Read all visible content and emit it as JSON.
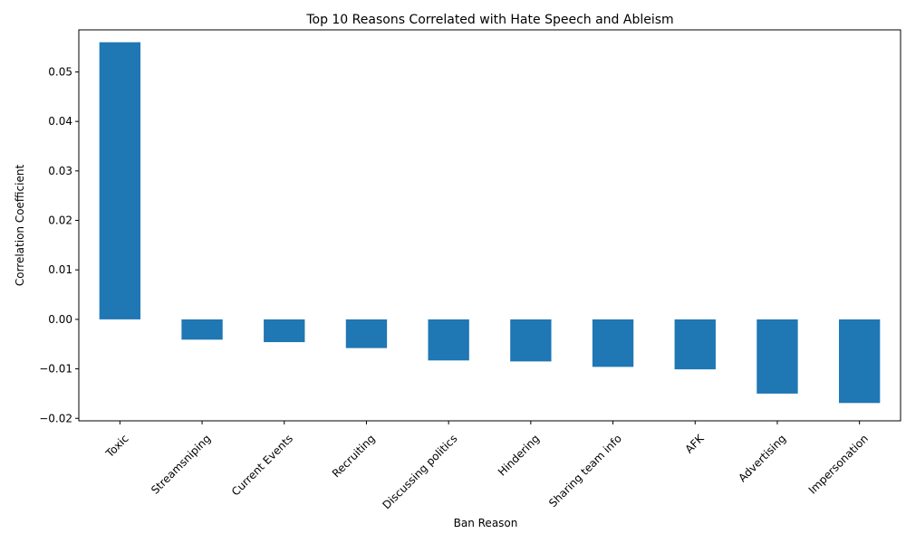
{
  "chart_data": {
    "type": "bar",
    "title": "Top 10 Reasons Correlated with Hate Speech and Ableism",
    "xlabel": "Ban Reason",
    "ylabel": "Correlation Coefficient",
    "categories": [
      "Toxic",
      "Streamsniping",
      "Current Events",
      "Recruiting",
      "Discussing politics",
      "Hindering",
      "Sharing team info",
      "AFK",
      "Advertising",
      "Impersonation"
    ],
    "values": [
      0.056,
      -0.0041,
      -0.0046,
      -0.0058,
      -0.0083,
      -0.0085,
      -0.0096,
      -0.0101,
      -0.015,
      -0.0169
    ],
    "ylim": [
      -0.0205,
      0.0585
    ],
    "yticks": [
      -0.02,
      -0.01,
      0.0,
      0.01,
      0.02,
      0.03,
      0.04,
      0.05
    ],
    "ytick_labels": [
      "−0.02",
      "−0.01",
      "0.00",
      "0.01",
      "0.02",
      "0.03",
      "0.04",
      "0.05"
    ],
    "bar_color": "#1f77b4",
    "grid": false,
    "legend": "none"
  }
}
